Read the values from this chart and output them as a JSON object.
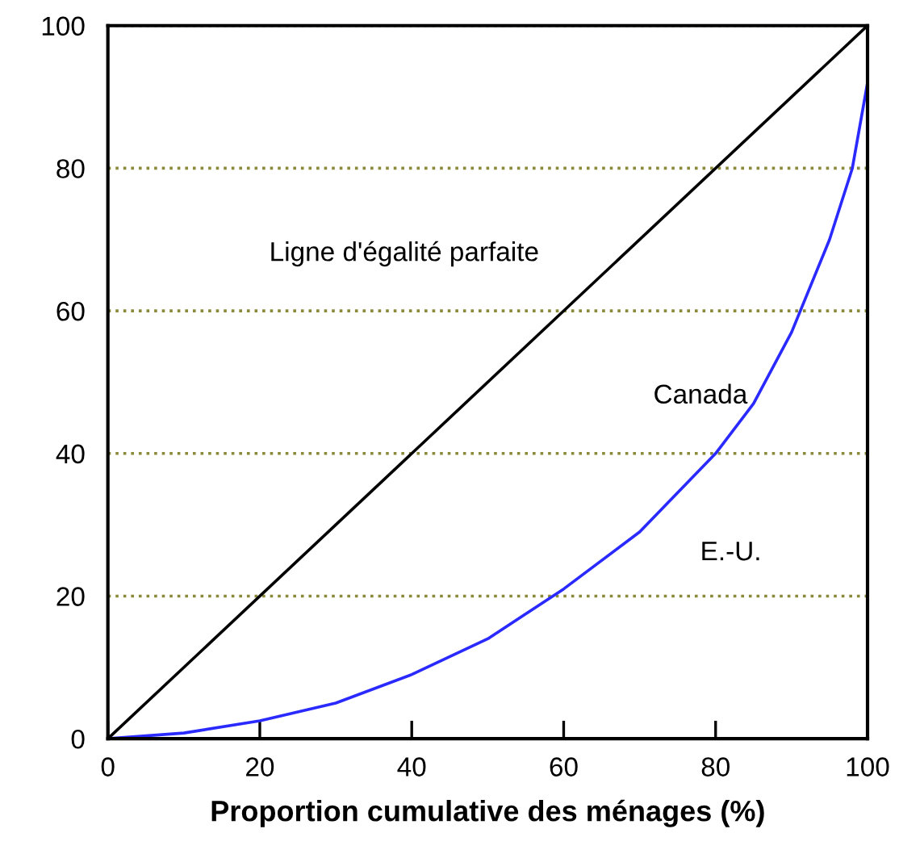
{
  "chart_data": {
    "type": "line",
    "xlabel": "Proportion cumulative des ménages (%)",
    "xlim": [
      0,
      100
    ],
    "ylim": [
      0,
      100
    ],
    "xticks": [
      0,
      20,
      40,
      60,
      80,
      100
    ],
    "yticks": [
      0,
      20,
      40,
      60,
      80,
      100
    ],
    "grid": "y",
    "series": [
      {
        "color": "#000000",
        "x": [
          0,
          100
        ],
        "values": [
          0,
          100
        ]
      },
      {
        "color": "#2a2aff",
        "x": [
          0,
          10,
          20,
          30,
          40,
          50,
          60,
          70,
          80,
          85,
          90,
          95,
          98,
          100
        ],
        "values": [
          0,
          0.8,
          2.5,
          5,
          9,
          14,
          21,
          29,
          40,
          47,
          57,
          70,
          80,
          92
        ]
      }
    ],
    "annotations": [
      "Ligne d'égalité parfaite",
      "Canada",
      "E.-U."
    ]
  }
}
